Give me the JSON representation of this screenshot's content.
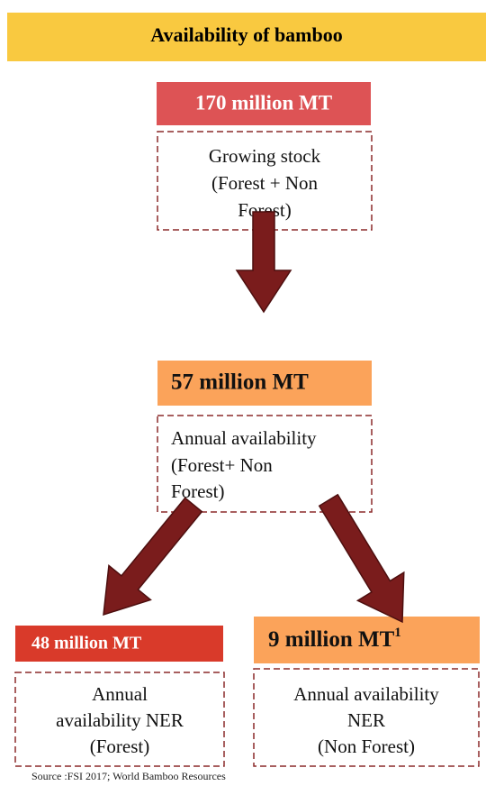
{
  "title": "Availability of bamboo",
  "nodes": [
    {
      "value": "170 million MT",
      "lines": [
        "Growing stock",
        "(Forest + Non",
        "Forest)"
      ]
    },
    {
      "value": "57 million MT",
      "lines": [
        "Annual availability",
        "(Forest+ Non",
        "Forest)"
      ]
    },
    {
      "value": "48 million MT",
      "lines": [
        "Annual",
        "availability NER",
        "(Forest)"
      ]
    },
    {
      "value": "9 million MT",
      "note": "1",
      "lines": [
        "Annual availability",
        "NER",
        "(Non Forest)"
      ]
    }
  ],
  "source": "Source :FSI 2017; World Bamboo Resources"
}
